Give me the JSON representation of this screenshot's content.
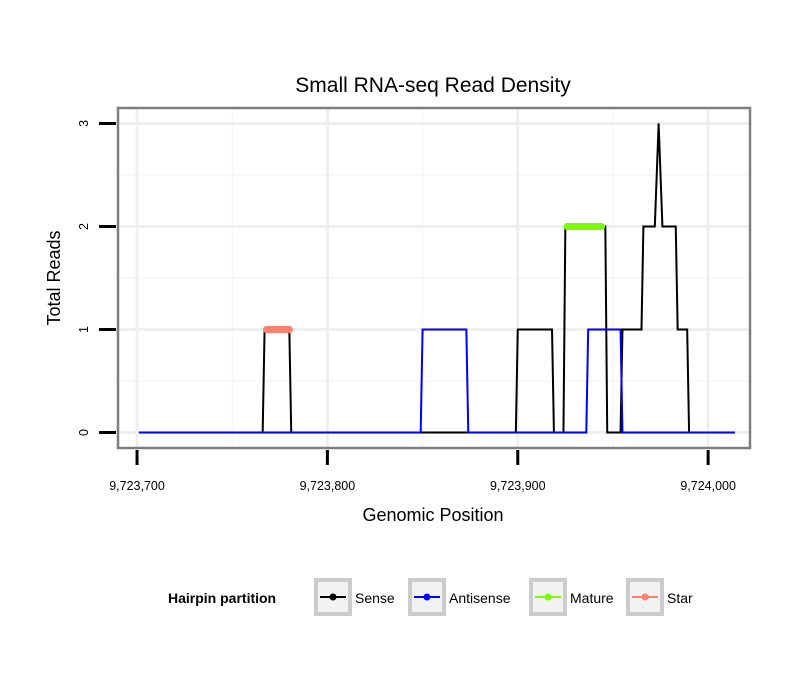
{
  "chart_data": {
    "type": "line",
    "title": "Small RNA-seq Read Density",
    "xlabel": "Genomic Position",
    "ylabel": "Total Reads",
    "xlim": [
      9723690,
      9724022
    ],
    "ylim": [
      -0.15,
      3.15
    ],
    "x_ticks": [
      9723700,
      9723800,
      9723900,
      9724000
    ],
    "x_tick_labels": [
      "9,723,700",
      "9,723,800",
      "9,723,900",
      "9,724,000"
    ],
    "y_ticks": [
      0,
      1,
      2,
      3
    ],
    "y_tick_labels": [
      "0",
      "1",
      "2",
      "3"
    ],
    "grid": true,
    "legend": {
      "title": "Hairpin partition",
      "position": "bottom",
      "items": [
        {
          "label": "Sense",
          "color": "#000000"
        },
        {
          "label": "Antisense",
          "color": "#0000ff"
        },
        {
          "label": "Mature",
          "color": "#7cfc00"
        },
        {
          "label": "Star",
          "color": "#fa8072"
        }
      ]
    },
    "series": [
      {
        "name": "Sense",
        "color": "#000000",
        "x": [
          9723701,
          9723766,
          9723767,
          9723780,
          9723781,
          9723899,
          9723900,
          9723918,
          9723919,
          9723924,
          9723925,
          9723946,
          9723947,
          9723954,
          9723955,
          9723965,
          9723966,
          9723972,
          9723974,
          9723976,
          9723983,
          9723984,
          9723989,
          9723990,
          9724014
        ],
        "values": [
          0,
          0,
          1,
          1,
          0,
          0,
          1,
          1,
          0,
          0,
          2,
          2,
          0,
          0,
          1,
          1,
          2,
          2,
          3,
          2,
          2,
          1,
          1,
          0,
          0
        ]
      },
      {
        "name": "Antisense",
        "color": "#0000ff",
        "x": [
          9723701,
          9723849,
          9723850,
          9723873,
          9723874,
          9723936,
          9723937,
          9723954,
          9723955,
          9724014
        ],
        "values": [
          0,
          0,
          1,
          1,
          0,
          0,
          1,
          1,
          0,
          0
        ]
      },
      {
        "name": "Mature",
        "color": "#7cfc00",
        "x": [
          9723926,
          9723928,
          9723930,
          9723932,
          9723934,
          9723936,
          9723938,
          9723940,
          9723942,
          9723944
        ],
        "values": [
          2,
          2,
          2,
          2,
          2,
          2,
          2,
          2,
          2,
          2
        ]
      },
      {
        "name": "Star",
        "color": "#fa8072",
        "x": [
          9723768,
          9723770,
          9723772,
          9723774,
          9723776,
          9723778,
          9723780
        ],
        "values": [
          1,
          1,
          1,
          1,
          1,
          1,
          1
        ]
      }
    ]
  }
}
